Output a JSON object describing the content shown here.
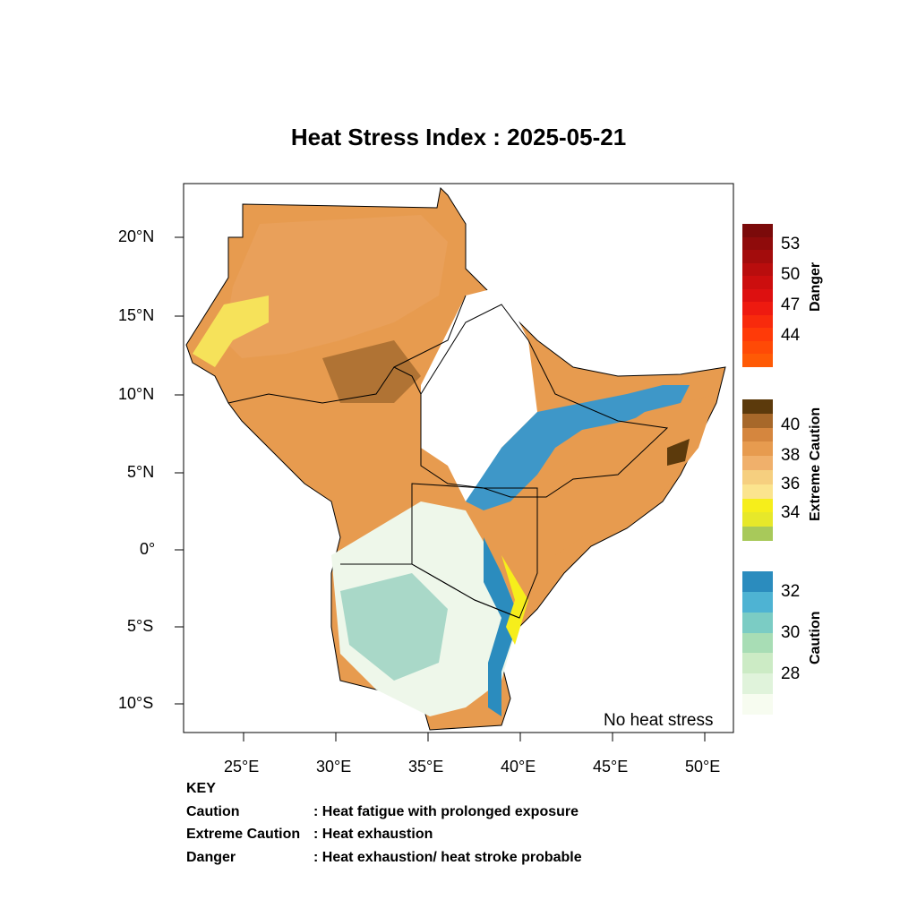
{
  "title": "Heat Stress Index : 2025-05-21",
  "no_stress_label": "No heat stress",
  "key": {
    "heading": "KEY",
    "rows": [
      {
        "term": "Caution",
        "desc": ": Heat fatigue with prolonged exposure"
      },
      {
        "term": "Extreme Caution",
        "desc": " : Heat exhaustion"
      },
      {
        "term": "Danger",
        "desc": ": Heat exhaustion/ heat stroke probable"
      }
    ]
  },
  "axes": {
    "lat_labels": [
      "20°N",
      "15°N",
      "10°N",
      "5°N",
      "0°",
      "5°S",
      "10°S"
    ],
    "lon_labels": [
      "25°E",
      "30°E",
      "35°E",
      "40°E",
      "45°E",
      "50°E"
    ]
  },
  "legends": {
    "danger": {
      "title": "Danger",
      "ticks": [
        "53",
        "50",
        "47",
        "44"
      ],
      "colors": [
        "#7b0a0a",
        "#8f0b0b",
        "#a30c0c",
        "#b90d0d",
        "#cc0e0e",
        "#dd1010",
        "#ee1a10",
        "#f82a0c",
        "#ff3a08",
        "#ff4a06",
        "#ff5a05"
      ]
    },
    "extreme_caution": {
      "title": "Extreme Caution",
      "ticks": [
        "40",
        "38",
        "36",
        "34"
      ],
      "colors": [
        "#5c3a0c",
        "#a7682a",
        "#d5863e",
        "#e79b4f",
        "#f0b06b",
        "#f6cf7f",
        "#fbe48e",
        "#f6ee1b",
        "#e7e82a",
        "#a8c95a"
      ]
    },
    "caution": {
      "title": "Caution",
      "ticks": [
        "32",
        "30",
        "28"
      ],
      "colors": [
        "#2b8cbe",
        "#4eb3d3",
        "#7bccc4",
        "#a8ddb5",
        "#ccebc5",
        "#e0f3db",
        "#f7fcf0"
      ]
    }
  }
}
